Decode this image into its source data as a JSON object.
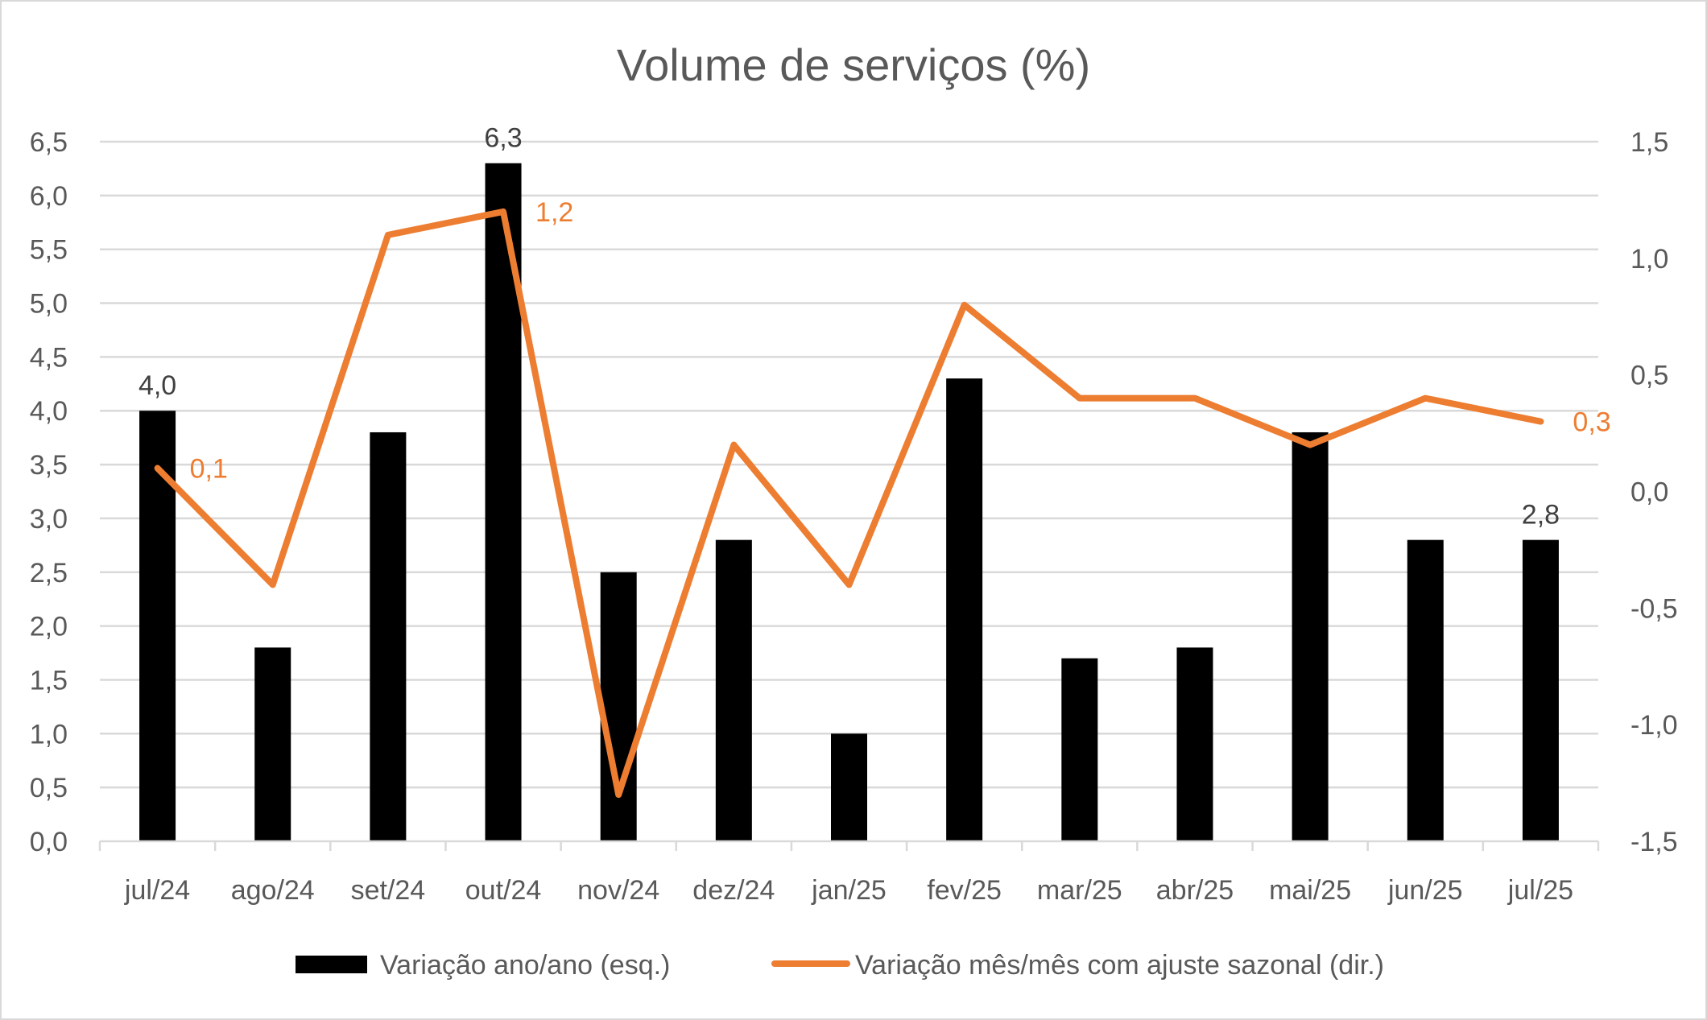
{
  "chart_data": {
    "type": "bar+line",
    "title": "Volume de serviços (%)",
    "categories": [
      "jul/24",
      "ago/24",
      "set/24",
      "out/24",
      "nov/24",
      "dez/24",
      "jan/25",
      "fev/25",
      "mar/25",
      "abr/25",
      "mai/25",
      "jun/25",
      "jul/25"
    ],
    "series": [
      {
        "name": "Variação ano/ano (esq.)",
        "type": "bar",
        "axis": "left",
        "color": "#000000",
        "values": [
          4.0,
          1.8,
          3.8,
          6.3,
          2.5,
          2.8,
          1.0,
          4.3,
          1.7,
          1.8,
          3.8,
          2.8,
          2.8
        ],
        "data_labels": [
          {
            "index": 0,
            "text": "4,0"
          },
          {
            "index": 3,
            "text": "6,3"
          },
          {
            "index": 12,
            "text": "2,8"
          }
        ]
      },
      {
        "name": "Variação mês/mês com ajuste sazonal (dir.)",
        "type": "line",
        "axis": "right",
        "color": "#ED7D31",
        "values": [
          0.1,
          -0.4,
          1.1,
          1.2,
          -1.3,
          0.2,
          -0.4,
          0.8,
          0.4,
          0.4,
          0.2,
          0.4,
          0.3
        ],
        "data_labels": [
          {
            "index": 0,
            "text": "0,1"
          },
          {
            "index": 3,
            "text": "1,2"
          },
          {
            "index": 12,
            "text": "0,3"
          }
        ]
      }
    ],
    "left_axis": {
      "ylim": [
        0,
        6.5
      ],
      "ticks": [
        "0,0",
        "0,5",
        "1,0",
        "1,5",
        "2,0",
        "2,5",
        "3,0",
        "3,5",
        "4,0",
        "4,5",
        "5,0",
        "5,5",
        "6,0",
        "6,5"
      ]
    },
    "right_axis": {
      "ylim": [
        -1.5,
        1.5
      ],
      "ticks": [
        "-1,5",
        "-1,0",
        "-0,5",
        "0,0",
        "0,5",
        "1,0",
        "1,5"
      ]
    },
    "grid": true,
    "legend": "bottom"
  }
}
